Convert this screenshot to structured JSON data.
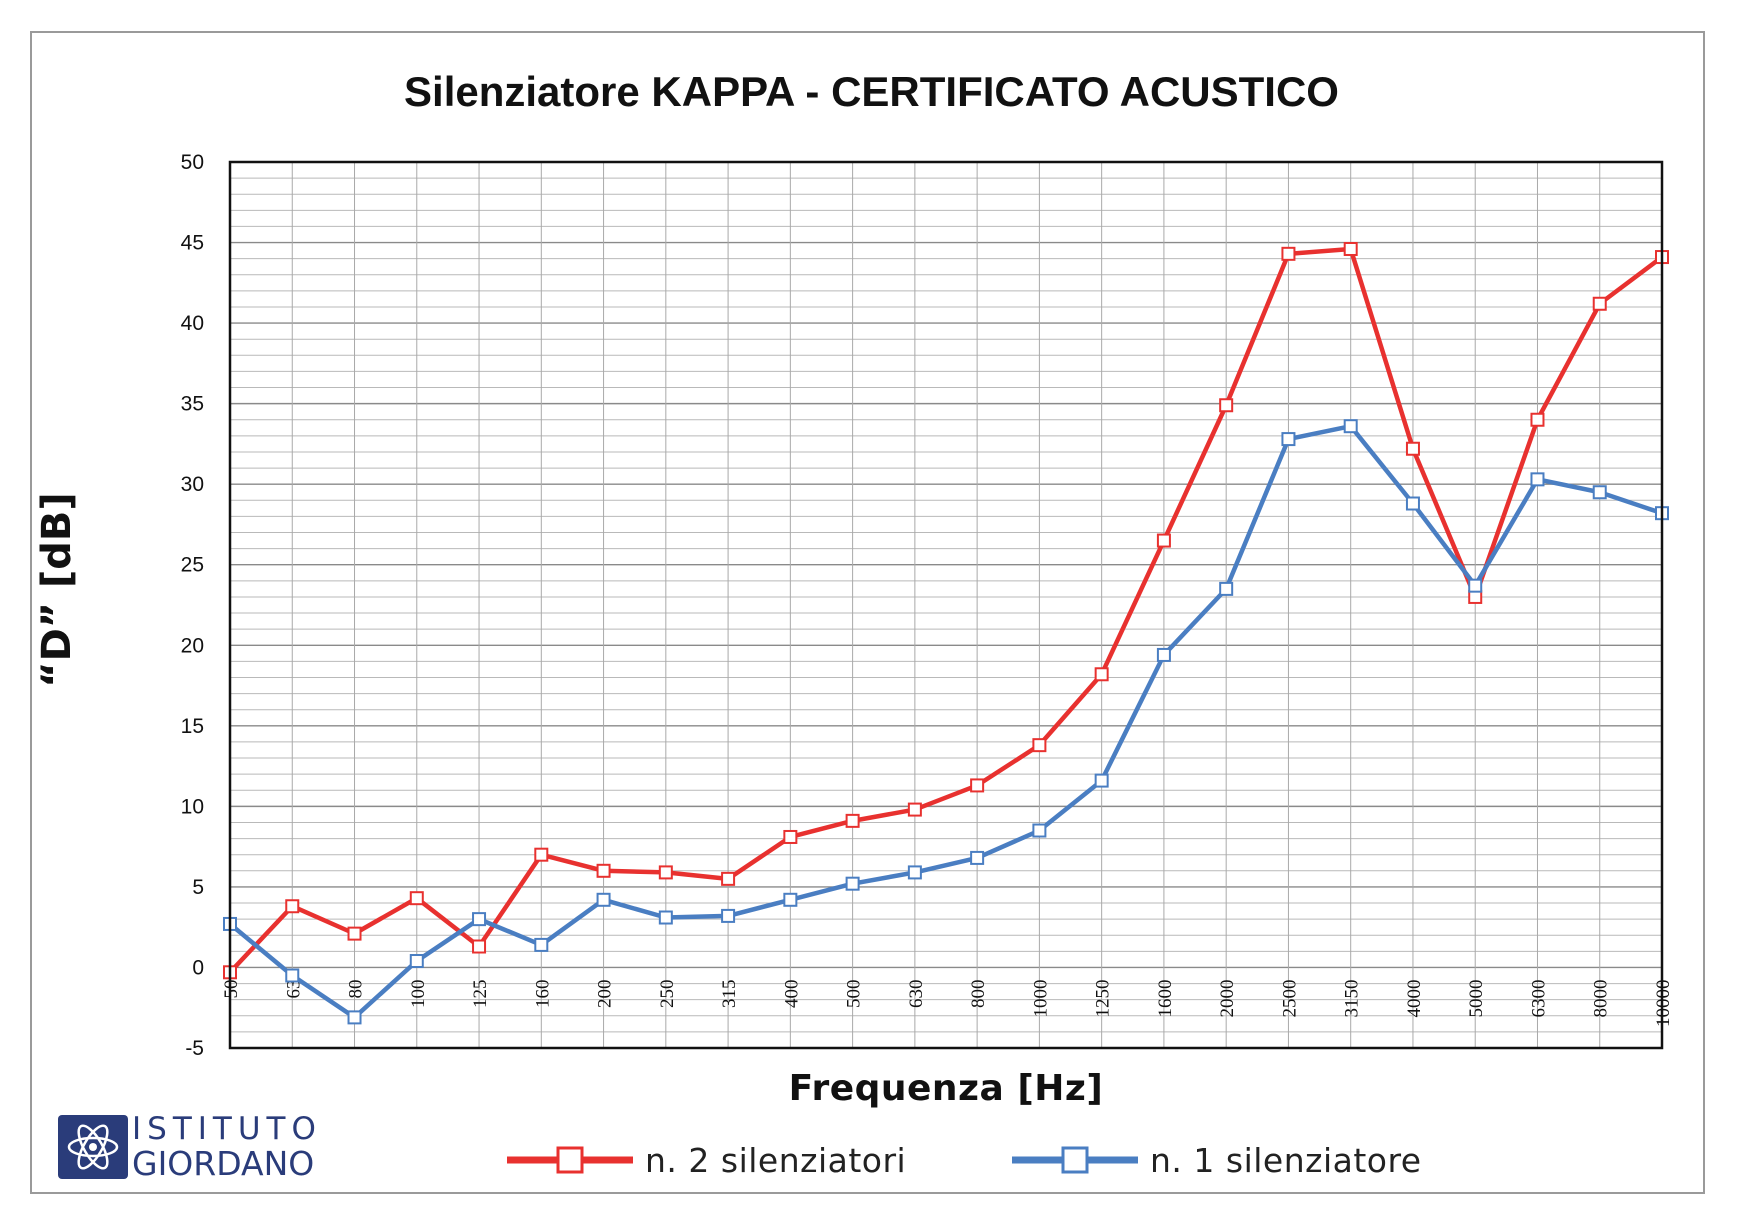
{
  "logo": {
    "line1": "ISTITUTO",
    "line2": "GIORDANO"
  },
  "chart_data": {
    "type": "line",
    "title": "Silenziatore KAPPA - CERTIFICATO ACUSTICO",
    "xlabel": "Frequenza [Hz]",
    "ylabel": "“D” [dB]",
    "ylim": [
      -5,
      50
    ],
    "yticks": [
      -5,
      0,
      5,
      10,
      15,
      20,
      25,
      30,
      35,
      40,
      45,
      50
    ],
    "grid": true,
    "legend_position": "bottom",
    "categories": [
      "50",
      "63",
      "80",
      "100",
      "125",
      "160",
      "200",
      "250",
      "315",
      "400",
      "500",
      "630",
      "800",
      "1000",
      "1250",
      "1600",
      "2000",
      "2500",
      "3150",
      "4000",
      "5000",
      "6300",
      "8000",
      "10000"
    ],
    "series": [
      {
        "name": "n. 2 silenziatori",
        "color": "#e8312f",
        "marker": "open-square",
        "values": [
          -0.3,
          3.8,
          2.1,
          4.3,
          1.3,
          7.0,
          6.0,
          5.9,
          5.5,
          8.1,
          9.1,
          9.8,
          11.3,
          13.8,
          18.2,
          26.5,
          34.9,
          44.3,
          44.6,
          32.2,
          23.0,
          34.0,
          41.2,
          44.1
        ]
      },
      {
        "name": "n. 1 silenziatore",
        "color": "#4a7ec2",
        "marker": "open-square",
        "values": [
          2.7,
          -0.5,
          -3.1,
          0.4,
          3.0,
          1.4,
          4.2,
          3.1,
          3.2,
          4.2,
          5.2,
          5.9,
          6.8,
          8.5,
          11.6,
          19.4,
          23.5,
          32.8,
          33.6,
          28.8,
          23.7,
          30.3,
          29.5,
          28.2
        ]
      }
    ]
  }
}
